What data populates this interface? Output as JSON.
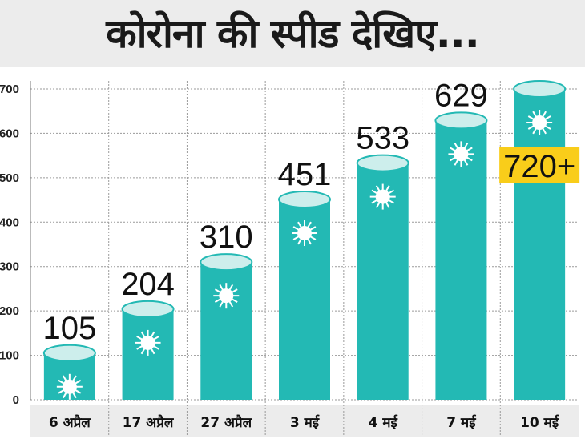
{
  "title": "कोरोना की स्पीड देखिए...",
  "colors": {
    "bar": "#23b9b4",
    "bar_top": "#cdeeec",
    "highlight": "#f9cd1a",
    "grid": "#9a9a9a",
    "label_band": "#ececec"
  },
  "chart_data": {
    "type": "bar",
    "title": "कोरोना की स्पीड देखिए...",
    "categories": [
      "6 अप्रैल",
      "17 अप्रैल",
      "27 अप्रैल",
      "3 मई",
      "4 मई",
      "7 मई",
      "10 मई"
    ],
    "values": [
      105,
      204,
      310,
      451,
      533,
      629,
      720
    ],
    "data_labels": [
      "105",
      "204",
      "310",
      "451",
      "533",
      "629",
      "720+"
    ],
    "highlight_index": 6,
    "yticks": [
      0,
      100,
      200,
      300,
      400,
      500,
      600,
      700
    ],
    "ylim": [
      0,
      720
    ],
    "xlabel": "",
    "ylabel": "",
    "grid": true,
    "legend": "none"
  }
}
